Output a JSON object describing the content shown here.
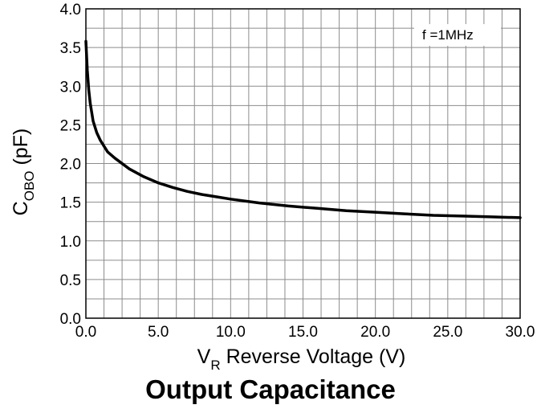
{
  "chart_data": {
    "type": "line",
    "title": "Output Capacitance",
    "xlabel": {
      "main": "V",
      "sub": "R",
      "rest": " Reverse Voltage (V)"
    },
    "ylabel": {
      "main": "C",
      "sub": "OBO",
      "rest": " (pF)"
    },
    "xlim": [
      0,
      30
    ],
    "ylim": [
      0,
      4.0
    ],
    "x_ticks": [
      "0.0",
      "5.0",
      "10.0",
      "15.0",
      "20.0",
      "25.0",
      "30.0"
    ],
    "y_ticks": [
      "0.0",
      "0.5",
      "1.0",
      "1.5",
      "2.0",
      "2.5",
      "3.0",
      "3.5",
      "4.0"
    ],
    "grid": true,
    "annotation": "f =1MHz",
    "series": [
      {
        "color": "#000000",
        "x": [
          0,
          0.1,
          0.2,
          0.3,
          0.5,
          0.75,
          1.0,
          1.5,
          2.0,
          3.0,
          4.0,
          5.0,
          6.0,
          7.0,
          8.0,
          9.0,
          10.0,
          12.0,
          14.0,
          16.0,
          18.0,
          20.0,
          22.0,
          24.0,
          26.0,
          28.0,
          30.0
        ],
        "y": [
          3.58,
          3.2,
          2.95,
          2.78,
          2.55,
          2.4,
          2.3,
          2.15,
          2.07,
          1.93,
          1.83,
          1.75,
          1.69,
          1.64,
          1.6,
          1.57,
          1.54,
          1.49,
          1.45,
          1.42,
          1.39,
          1.37,
          1.35,
          1.33,
          1.32,
          1.31,
          1.3
        ]
      }
    ]
  }
}
